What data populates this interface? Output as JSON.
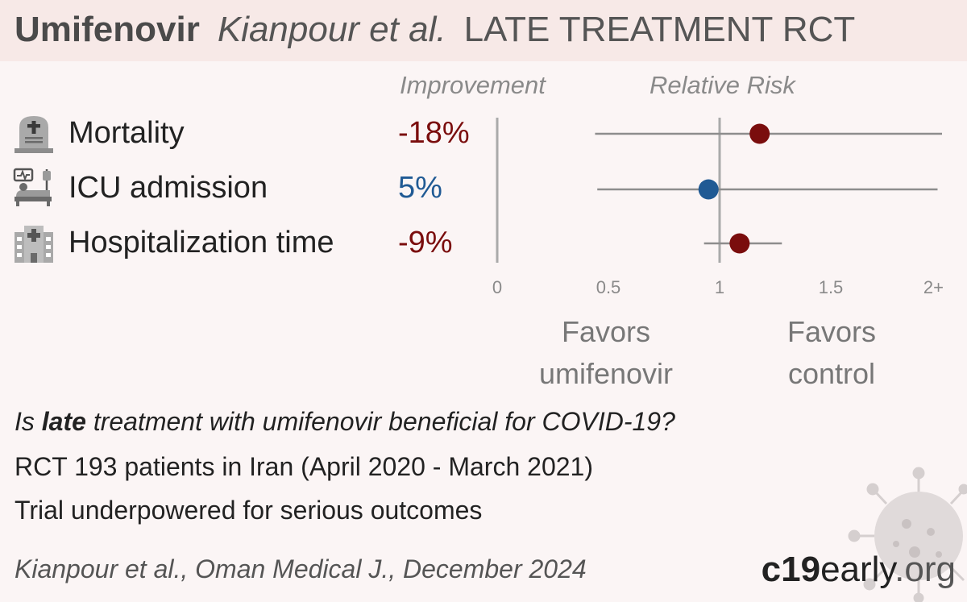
{
  "title": {
    "drug": "Umifenovir",
    "study": "Kianpour et al.",
    "label": "LATE TREATMENT  RCT"
  },
  "columns": {
    "improvement": "Improvement",
    "relative_risk": "Relative Risk"
  },
  "outcomes": [
    {
      "label": "Mortality",
      "improvement": "-18%",
      "icon": "tombstone-icon"
    },
    {
      "label": "ICU admission",
      "improvement": "5%",
      "icon": "icu-bed-icon"
    },
    {
      "label": "Hospitalization time",
      "improvement": "-9%",
      "icon": "hospital-icon"
    }
  ],
  "favors": {
    "left": [
      "Favors",
      "umifenovir"
    ],
    "right": [
      "Favors",
      "control"
    ]
  },
  "description": {
    "q_pre": "Is ",
    "q_bold": "late",
    "q_post": " treatment with umifenovir beneficial for COVID-19?",
    "line2": "RCT 193 patients in Iran (April 2020 - March 2021)",
    "line3": "Trial underpowered for serious outcomes"
  },
  "citation": "Kianpour et al., Oman Medical J., December 2024",
  "logo": {
    "part1": "c19",
    "part2": "early",
    "part3": ".org"
  },
  "colors": {
    "harm": "#7a0d0d",
    "benefit": "#205a94",
    "ci": "#8d8d8d",
    "axis": "#aaaaaa"
  },
  "chart_data": {
    "type": "forest",
    "x_axis": {
      "ticks": [
        0,
        0.5,
        1,
        1.5,
        2
      ],
      "tick_labels": [
        "0",
        "0.5",
        "1",
        "1.5",
        "2+"
      ],
      "xlim": [
        0,
        2
      ]
    },
    "series": [
      {
        "outcome": "Mortality",
        "rr": 1.18,
        "ci_low": 0.44,
        "ci_high": 2.0,
        "ci_high_capped": true,
        "color": "#7a0d0d"
      },
      {
        "outcome": "ICU admission",
        "rr": 0.95,
        "ci_low": 0.45,
        "ci_high": 1.98,
        "color": "#205a94"
      },
      {
        "outcome": "Hospitalization time",
        "rr": 1.09,
        "ci_low": 0.93,
        "ci_high": 1.28,
        "color": "#7a0d0d"
      }
    ]
  }
}
